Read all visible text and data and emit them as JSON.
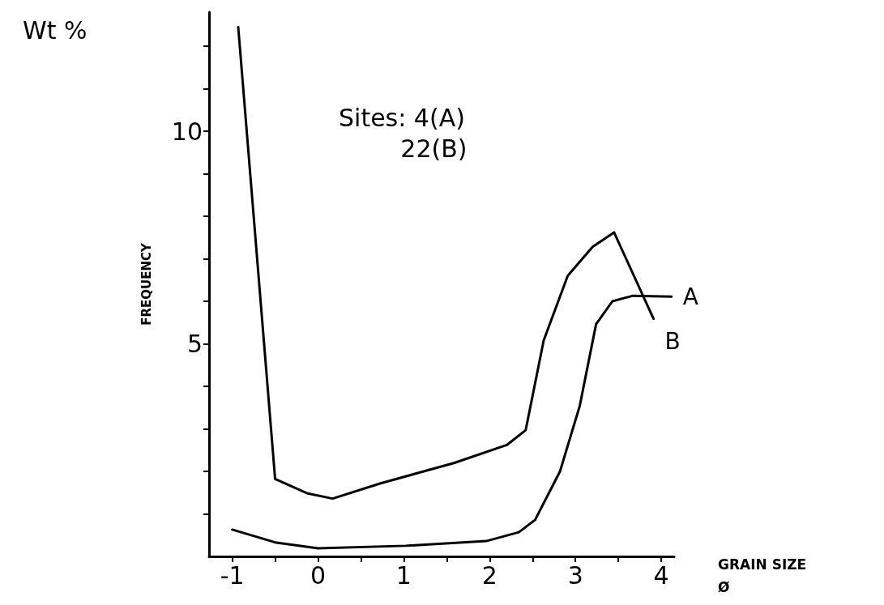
{
  "chart_data": {
    "type": "line",
    "xlabel": "GRAIN SIZE\nØ",
    "ylabel": "FREQUENCY",
    "annotations": [
      "Wt %",
      "Sites: 4(A)\n        22(B)"
    ],
    "xlim": [
      -1.27,
      4.15
    ],
    "ylim": [
      0,
      12.8
    ],
    "xticks": [
      -1,
      {
        "value": -0.5,
        "label": null
      },
      0,
      {
        "value": 0.5,
        "label": null
      },
      1,
      {
        "value": 1.5,
        "label": null
      },
      2,
      {
        "value": 2.5,
        "label": null
      },
      3,
      {
        "value": 3.5,
        "label": null
      },
      4
    ],
    "yticks": [
      {
        "value": 1,
        "label": null
      },
      {
        "value": 2,
        "label": null
      },
      {
        "value": 3,
        "label": null
      },
      {
        "value": 4,
        "label": null
      },
      5,
      {
        "value": 6,
        "label": null
      },
      {
        "value": 7,
        "label": null
      },
      {
        "value": 8,
        "label": null
      },
      {
        "value": 9,
        "label": null
      },
      10,
      {
        "value": 11,
        "label": null
      },
      {
        "value": 12,
        "label": null
      }
    ],
    "grid": false,
    "legend": false,
    "marker": "none",
    "line_style": "solid",
    "series": [
      {
        "name": "B",
        "color": "#000000",
        "x": [
          -0.93,
          -0.5,
          -0.12,
          0.17,
          0.73,
          1.59,
          2.2,
          2.42,
          2.63,
          2.91,
          3.2,
          3.45,
          3.91
        ],
        "values": [
          12.45,
          1.82,
          1.48,
          1.36,
          1.72,
          2.2,
          2.62,
          2.97,
          5.08,
          6.6,
          7.28,
          7.62,
          5.59
        ]
      },
      {
        "name": "A",
        "color": "#000000",
        "x": [
          -1.0,
          -0.5,
          0,
          1.02,
          1.96,
          2.34,
          2.53,
          2.82,
          3.05,
          3.24,
          3.43,
          3.67,
          4.12
        ],
        "values": [
          0.63,
          0.33,
          0.19,
          0.25,
          0.36,
          0.57,
          0.86,
          2.0,
          3.54,
          5.46,
          6.0,
          6.13,
          6.11
        ]
      }
    ]
  }
}
